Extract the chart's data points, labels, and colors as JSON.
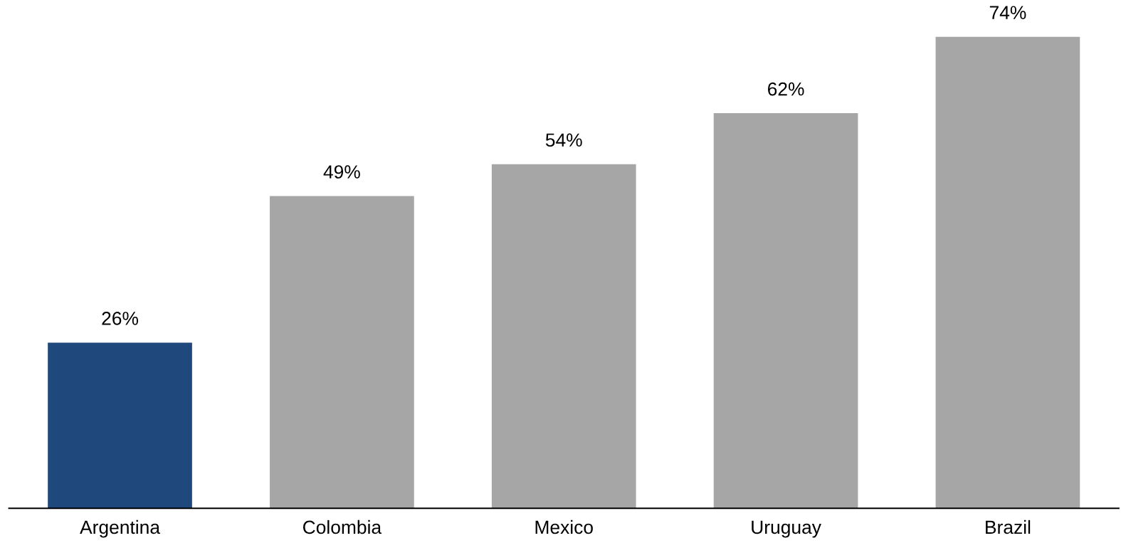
{
  "chart_data": {
    "type": "bar",
    "categories": [
      "Argentina",
      "Colombia",
      "Mexico",
      "Uruguay",
      "Brazil"
    ],
    "values": [
      26,
      49,
      54,
      62,
      74
    ],
    "colors": [
      "#1f497d",
      "#a6a6a6",
      "#a6a6a6",
      "#a6a6a6",
      "#a6a6a6"
    ],
    "value_labels": [
      "26%",
      "49%",
      "54%",
      "62%",
      "74%"
    ],
    "tick_labels": "x"
  }
}
